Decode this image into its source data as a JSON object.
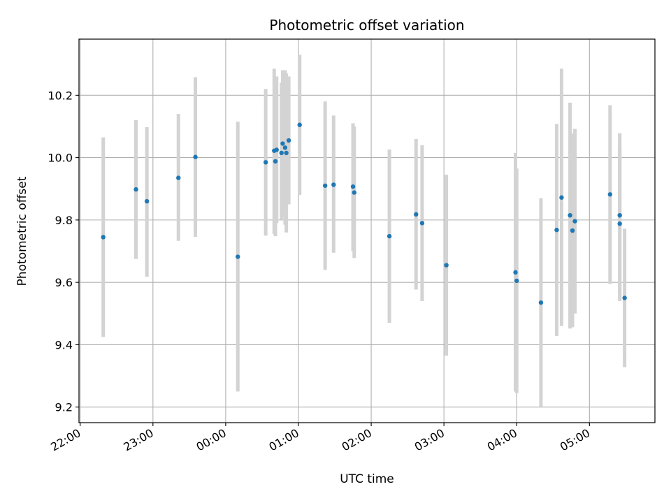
{
  "chart_data": {
    "type": "scatter",
    "title": "Photometric offset variation",
    "xlabel": "UTC time",
    "ylabel": "Photometric offset",
    "grid": true,
    "x_ticks": [
      "22:00",
      "23:00",
      "00:00",
      "01:00",
      "02:00",
      "03:00",
      "04:00",
      "05:00"
    ],
    "y_ticks": [
      "9.2",
      "9.4",
      "9.6",
      "9.8",
      "10.0",
      "10.2"
    ],
    "ylim": [
      9.15,
      10.38
    ],
    "xlim": [
      "21:59",
      "05:54"
    ],
    "colors": {
      "point": "#1f77b4",
      "errorbar": "#d3d3d3",
      "grid": "#b0b0b0"
    },
    "series": [
      {
        "points": [
          {
            "t": "22:19",
            "y": 9.745,
            "lo": 9.425,
            "hi": 10.065
          },
          {
            "t": "22:46",
            "y": 9.898,
            "lo": 9.675,
            "hi": 10.12
          },
          {
            "t": "22:55",
            "y": 9.86,
            "lo": 9.618,
            "hi": 10.098
          },
          {
            "t": "23:21",
            "y": 9.935,
            "lo": 9.733,
            "hi": 10.14
          },
          {
            "t": "23:35",
            "y": 10.002,
            "lo": 9.746,
            "hi": 10.258
          },
          {
            "t": "00:10",
            "y": 9.682,
            "lo": 9.25,
            "hi": 10.115
          },
          {
            "t": "00:33",
            "y": 9.985,
            "lo": 9.75,
            "hi": 10.22
          },
          {
            "t": "00:40",
            "y": 10.022,
            "lo": 9.755,
            "hi": 10.285
          },
          {
            "t": "00:41",
            "y": 9.988,
            "lo": 9.748,
            "hi": 10.26
          },
          {
            "t": "00:42",
            "y": 10.025,
            "lo": 9.79,
            "hi": 10.26
          },
          {
            "t": "00:46",
            "y": 10.015,
            "lo": 9.8,
            "hi": 10.24
          },
          {
            "t": "00:47",
            "y": 10.045,
            "lo": 9.81,
            "hi": 10.28
          },
          {
            "t": "00:49",
            "y": 10.032,
            "lo": 9.785,
            "hi": 10.28
          },
          {
            "t": "00:50",
            "y": 10.015,
            "lo": 9.76,
            "hi": 10.27
          },
          {
            "t": "00:52",
            "y": 10.055,
            "lo": 9.85,
            "hi": 10.26
          },
          {
            "t": "01:01",
            "y": 10.105,
            "lo": 9.88,
            "hi": 10.33
          },
          {
            "t": "01:22",
            "y": 9.91,
            "lo": 9.64,
            "hi": 10.18
          },
          {
            "t": "01:29",
            "y": 9.913,
            "lo": 9.695,
            "hi": 10.135
          },
          {
            "t": "01:45",
            "y": 9.907,
            "lo": 9.7,
            "hi": 10.11
          },
          {
            "t": "01:46",
            "y": 9.888,
            "lo": 9.678,
            "hi": 10.1
          },
          {
            "t": "02:15",
            "y": 9.748,
            "lo": 9.47,
            "hi": 10.026
          },
          {
            "t": "02:37",
            "y": 9.818,
            "lo": 9.577,
            "hi": 10.06
          },
          {
            "t": "02:42",
            "y": 9.79,
            "lo": 9.54,
            "hi": 10.04
          },
          {
            "t": "03:02",
            "y": 9.655,
            "lo": 9.365,
            "hi": 9.945
          },
          {
            "t": "03:59",
            "y": 9.632,
            "lo": 9.25,
            "hi": 10.015
          },
          {
            "t": "04:00",
            "y": 9.605,
            "lo": 9.245,
            "hi": 9.965
          },
          {
            "t": "04:20",
            "y": 9.535,
            "lo": 9.2,
            "hi": 9.87
          },
          {
            "t": "04:33",
            "y": 9.768,
            "lo": 9.428,
            "hi": 10.108
          },
          {
            "t": "04:37",
            "y": 9.872,
            "lo": 9.46,
            "hi": 10.285
          },
          {
            "t": "04:44",
            "y": 9.815,
            "lo": 9.452,
            "hi": 10.176
          },
          {
            "t": "04:46",
            "y": 9.766,
            "lo": 9.456,
            "hi": 10.077
          },
          {
            "t": "04:48",
            "y": 9.796,
            "lo": 9.5,
            "hi": 10.092
          },
          {
            "t": "05:17",
            "y": 9.882,
            "lo": 9.595,
            "hi": 10.168
          },
          {
            "t": "05:25",
            "y": 9.815,
            "lo": 9.55,
            "hi": 10.078
          },
          {
            "t": "05:25",
            "y": 9.788,
            "lo": 9.54,
            "hi": 10.035
          },
          {
            "t": "05:29",
            "y": 9.55,
            "lo": 9.328,
            "hi": 9.772
          }
        ]
      }
    ]
  }
}
